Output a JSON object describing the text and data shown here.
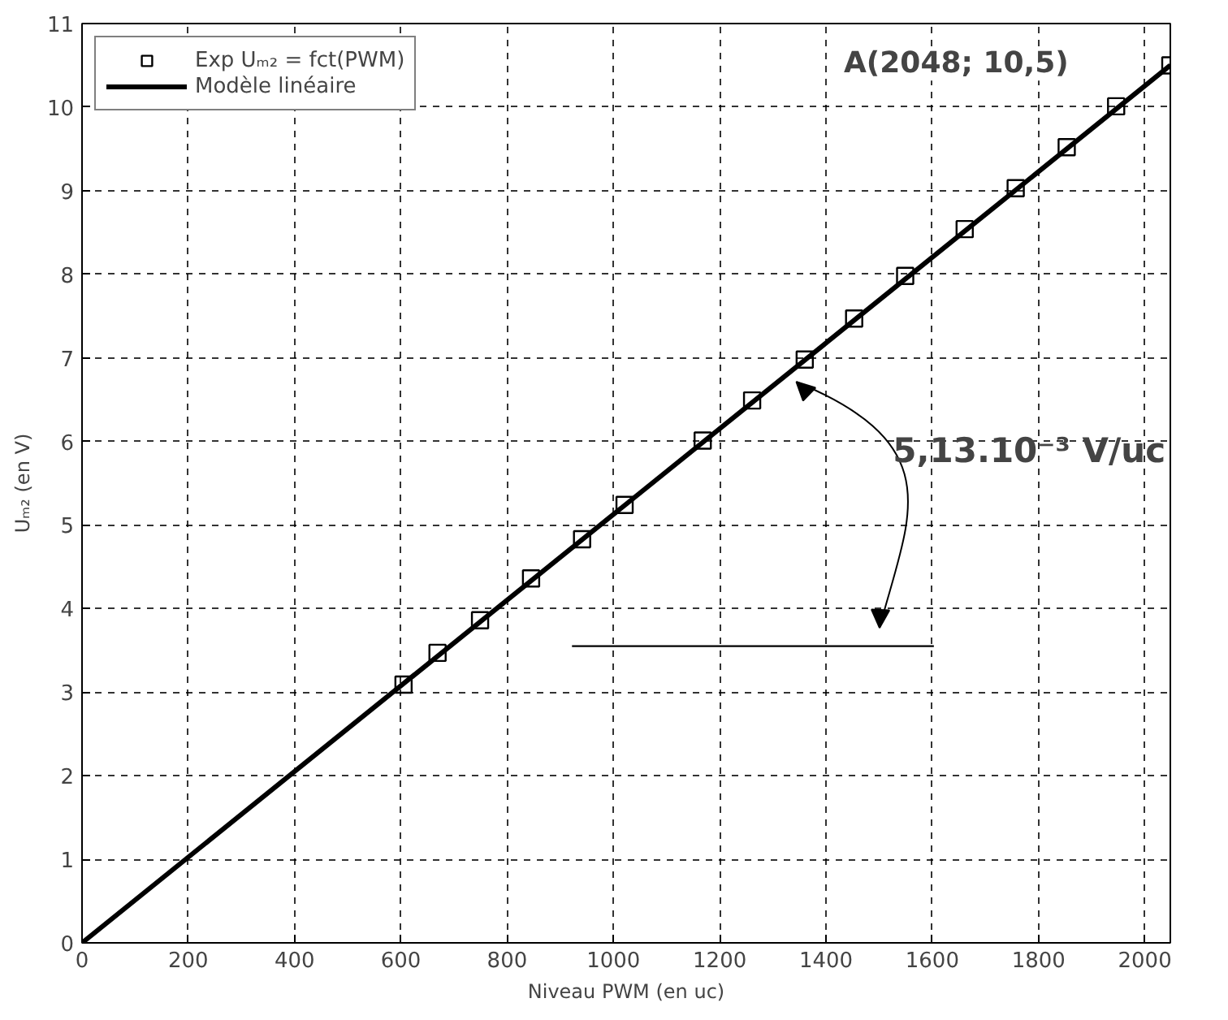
{
  "chart_data": {
    "type": "scatter",
    "xlabel": "Niveau PWM (en uc)",
    "ylabel": "Uₘ₂ (en V)",
    "xlim": [
      0,
      2048
    ],
    "ylim": [
      0,
      11
    ],
    "xticks": [
      0,
      200,
      400,
      600,
      800,
      1000,
      1200,
      1400,
      1600,
      1800,
      2000
    ],
    "yticks": [
      0,
      1,
      2,
      3,
      4,
      5,
      6,
      7,
      8,
      9,
      10,
      11
    ],
    "grid": true,
    "legend": "top left",
    "series": [
      {
        "name": "Exp Uₘ₂ = fct(PWM)",
        "marker": "square",
        "color": "#000000",
        "x": [
          605,
          669,
          749,
          845,
          941,
          1021,
          1168,
          1261,
          1360,
          1453,
          1549,
          1661,
          1757,
          1853,
          1946,
          2048
        ],
        "values": [
          3.09,
          3.47,
          3.86,
          4.36,
          4.83,
          5.24,
          6.01,
          6.49,
          6.98,
          7.47,
          7.98,
          8.54,
          9.03,
          9.52,
          10.01,
          10.5
        ]
      },
      {
        "name": "Modèle linéaire",
        "type": "line",
        "line_style": "solid",
        "color": "#000000",
        "x": [
          0,
          2048
        ],
        "values": [
          0,
          10.5
        ]
      },
      {
        "type": "line",
        "line_style": "solid",
        "color": "#000000",
        "x": [
          922,
          1603
        ],
        "values": [
          3.55,
          3.55
        ]
      }
    ],
    "annotations": [
      "A(2048; 10,5)",
      "5,13.10⁻³ V/uc"
    ]
  }
}
